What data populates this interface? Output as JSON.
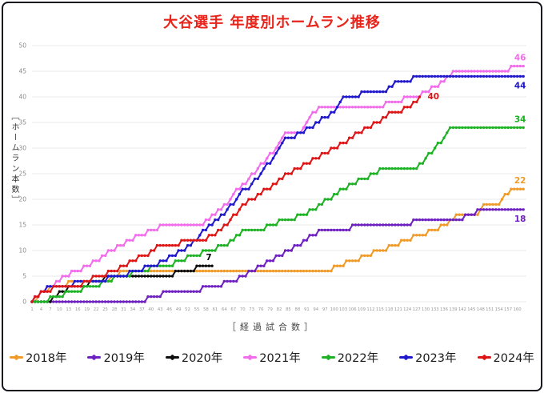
{
  "title": "大谷選手 年度別ホームラン推移",
  "title_color": "#E8231A",
  "frame_border_color": "#14141e",
  "grid_color": "#e8e8e8",
  "tick_label_color": "#999999",
  "chart_data": {
    "type": "line",
    "subtype": "cumulative-step",
    "title": "大谷選手 年度別ホームラン推移",
    "xlabel": "［経過試合数］",
    "ylabel": "［ホームラン本数］",
    "x_axis": "経過試合数 (games elapsed)",
    "y_axis": "ホームラン本数 (cumulative home runs)",
    "xlim": [
      1,
      163
    ],
    "ylim": [
      0,
      50
    ],
    "x_ticks": {
      "start": 1,
      "step": 3,
      "max": 160
    },
    "y_ticks": {
      "start": 0,
      "step": 5,
      "max": 50
    },
    "grid": "horizontal-only",
    "legend_position": "bottom",
    "series": [
      {
        "name": "2018年",
        "year": "2018",
        "color": "#F09A28",
        "total": 22,
        "season_games": 162,
        "end_label": "22",
        "label_placement": "above",
        "hr_games": [
          3,
          4,
          7,
          13,
          27,
          30,
          100,
          104,
          109,
          113,
          118,
          122,
          126,
          131,
          135,
          138,
          140,
          148,
          149,
          155,
          156,
          158
        ]
      },
      {
        "name": "2019年",
        "year": "2019",
        "color": "#6E20C0",
        "total": 18,
        "season_games": 162,
        "end_label": "18",
        "label_placement": "below",
        "hr_games": [
          39,
          44,
          57,
          64,
          69,
          72,
          75,
          78,
          81,
          84,
          87,
          90,
          92,
          95,
          106,
          126,
          143,
          147
        ]
      },
      {
        "name": "2020年",
        "year": "2020",
        "color": "#0d0d0d",
        "total": 7,
        "season_games": 60,
        "end_label": "7",
        "label_placement": "above",
        "hr_games": [
          8,
          10,
          13,
          20,
          25,
          48,
          55
        ]
      },
      {
        "name": "2021年",
        "year": "2021",
        "color": "#F26CEB",
        "total": 46,
        "season_games": 162,
        "end_label": "46",
        "label_placement": "above",
        "hr_games": [
          2,
          4,
          6,
          9,
          11,
          14,
          18,
          21,
          24,
          26,
          29,
          32,
          35,
          39,
          43,
          58,
          60,
          62,
          64,
          66,
          67,
          68,
          70,
          72,
          73,
          75,
          76,
          78,
          79,
          81,
          82,
          83,
          84,
          90,
          91,
          92,
          93,
          95,
          117,
          123,
          129,
          132,
          135,
          137,
          139,
          158
        ]
      },
      {
        "name": "2022年",
        "year": "2022",
        "color": "#1DB224",
        "total": 34,
        "season_games": 162,
        "end_label": "34",
        "label_placement": "above",
        "hr_games": [
          7,
          12,
          18,
          24,
          28,
          34,
          40,
          48,
          52,
          57,
          62,
          66,
          68,
          70,
          78,
          82,
          88,
          92,
          95,
          97,
          100,
          102,
          105,
          108,
          112,
          115,
          128,
          130,
          131,
          133,
          134,
          136,
          137,
          138
        ]
      },
      {
        "name": "2023年",
        "year": "2023",
        "color": "#2018CC",
        "total": 44,
        "season_games": 162,
        "end_label": "44",
        "label_placement": "below",
        "hr_games": [
          2,
          4,
          6,
          15,
          26,
          33,
          38,
          43,
          46,
          49,
          52,
          54,
          56,
          57,
          59,
          61,
          63,
          65,
          66,
          68,
          69,
          70,
          73,
          74,
          76,
          77,
          78,
          80,
          81,
          82,
          83,
          84,
          88,
          91,
          94,
          96,
          99,
          101,
          102,
          103,
          109,
          118,
          120,
          126
        ]
      },
      {
        "name": "2024年",
        "year": "2024",
        "color": "#DF1414",
        "total": 40,
        "season_games": 128,
        "end_label": "40",
        "label_placement": "right",
        "hr_games": [
          2,
          4,
          8,
          18,
          21,
          26,
          30,
          33,
          36,
          40,
          42,
          50,
          59,
          62,
          64,
          66,
          67,
          69,
          70,
          72,
          75,
          77,
          80,
          82,
          84,
          87,
          90,
          93,
          96,
          99,
          102,
          105,
          107,
          110,
          113,
          116,
          118,
          123,
          126,
          128
        ]
      }
    ]
  }
}
